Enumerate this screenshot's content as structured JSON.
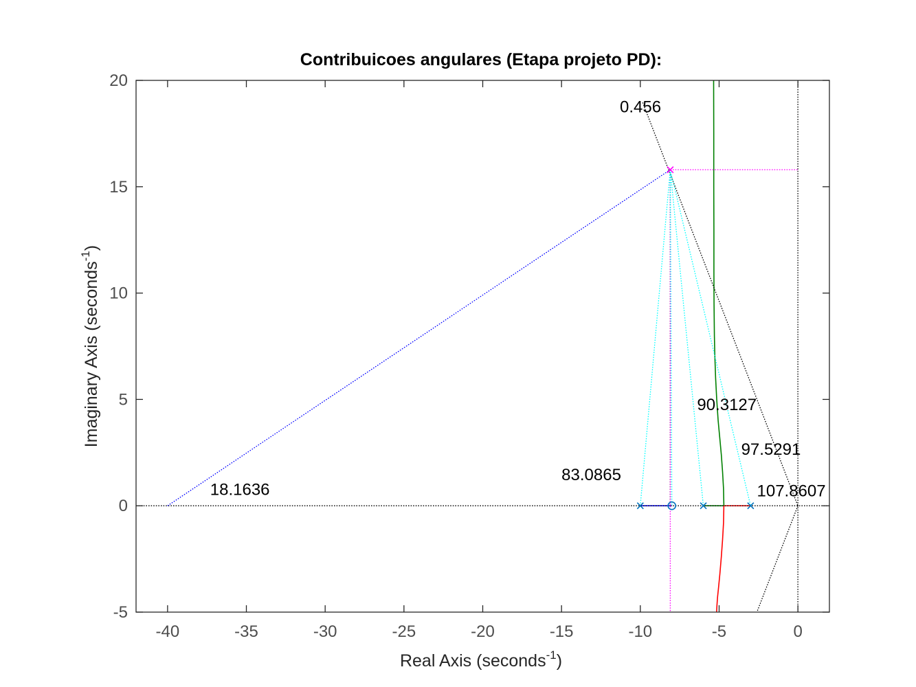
{
  "chart_data": {
    "type": "line",
    "title": "Contribuicoes angulares (Etapa projeto PD):",
    "xlabel": {
      "main": "Real Axis (seconds",
      "sup": "-1",
      "end": ")"
    },
    "ylabel": {
      "main": "Imaginary Axis (seconds",
      "sup": "-1",
      "end": ")"
    },
    "xlim": [
      -42,
      2
    ],
    "ylim": [
      -5,
      20
    ],
    "xticks": [
      -40,
      -35,
      -30,
      -25,
      -20,
      -15,
      -10,
      -5,
      0
    ],
    "yticks": [
      -5,
      0,
      5,
      10,
      15,
      20
    ],
    "xtick_labels": [
      "-40",
      "-35",
      "-30",
      "-25",
      "-20",
      "-15",
      "-10",
      "-5",
      "0"
    ],
    "ytick_labels": [
      "-5",
      "0",
      "5",
      "10",
      "15",
      "20"
    ],
    "grid": false,
    "colors": {
      "blue": "#0000ff",
      "cyan": "#00ffff",
      "magenta": "#ff00ff",
      "green": "#008000",
      "red": "#ff0000",
      "black": "#000000",
      "marker": "#0072bd"
    },
    "poles": [
      [
        -10,
        0
      ],
      [
        -6,
        0
      ],
      [
        -3,
        0
      ]
    ],
    "zeros": [
      [
        -8,
        0
      ]
    ],
    "desired_pole": [
      -8.1,
      15.8
    ],
    "series": [
      {
        "kind": "rlocus",
        "color": "blue",
        "x": [
          -10,
          -8
        ],
        "y": [
          0,
          0
        ]
      },
      {
        "kind": "rlocus",
        "color": "red",
        "x": [
          -3,
          -4.7
        ],
        "y": [
          0,
          0
        ]
      },
      {
        "kind": "rlocus",
        "color": "green",
        "x": [
          -6,
          -4.7
        ],
        "y": [
          0,
          0
        ]
      },
      {
        "kind": "rlocus",
        "color": "green",
        "x": [
          -4.7,
          -4.72,
          -4.78,
          -4.86,
          -4.96,
          -5.06,
          -5.15,
          -5.22,
          -5.27,
          -5.3,
          -5.32,
          -5.33,
          -5.33,
          -5.34,
          -5.34,
          -5.35
        ],
        "y": [
          0,
          0.8,
          1.6,
          2.4,
          3.2,
          4.0,
          5.0,
          6.0,
          7.0,
          8.0,
          9.5,
          11,
          13,
          15,
          17.5,
          20
        ]
      },
      {
        "kind": "rlocus",
        "color": "red",
        "x": [
          -4.7,
          -4.72,
          -4.78,
          -4.86,
          -4.95,
          -5.03,
          -5.1,
          -5.14,
          -5.16
        ],
        "y": [
          0,
          -0.8,
          -1.6,
          -2.4,
          -3.2,
          -3.8,
          -4.3,
          -4.7,
          -5
        ]
      },
      {
        "kind": "dotted",
        "color": "black",
        "x": [
          -42,
          2
        ],
        "y": [
          0,
          0
        ]
      },
      {
        "kind": "dotted",
        "color": "black",
        "x": [
          0,
          0
        ],
        "y": [
          -5,
          20
        ]
      },
      {
        "kind": "dotted",
        "color": "black",
        "x": [
          -9.85,
          0
        ],
        "y": [
          18.96,
          0
        ]
      },
      {
        "kind": "dotted",
        "color": "black",
        "x": [
          0,
          -2.6
        ],
        "y": [
          0,
          -5
        ]
      },
      {
        "kind": "dotted",
        "color": "black",
        "x": [
          -8.1,
          -8.1
        ],
        "y": [
          15.8,
          0
        ]
      },
      {
        "kind": "dotted",
        "color": "magenta",
        "x": [
          -8.1,
          -8.1
        ],
        "y": [
          15.8,
          -5
        ]
      },
      {
        "kind": "dotted",
        "color": "magenta",
        "x": [
          -8.1,
          0
        ],
        "y": [
          15.8,
          15.8
        ]
      },
      {
        "kind": "dotted",
        "color": "blue",
        "x": [
          -8.1,
          -40
        ],
        "y": [
          15.8,
          0
        ]
      },
      {
        "kind": "dotted",
        "color": "cyan",
        "x": [
          -8.1,
          -10
        ],
        "y": [
          15.8,
          0
        ]
      },
      {
        "kind": "dotted",
        "color": "cyan",
        "x": [
          -8.1,
          -8
        ],
        "y": [
          15.8,
          0
        ]
      },
      {
        "kind": "dotted",
        "color": "cyan",
        "x": [
          -8.1,
          -6
        ],
        "y": [
          15.8,
          0
        ]
      },
      {
        "kind": "dotted",
        "color": "cyan",
        "x": [
          -8.1,
          -3
        ],
        "y": [
          15.8,
          0
        ]
      }
    ],
    "annotations": [
      {
        "text": "0.456",
        "x": -11.3,
        "y": 18.5
      },
      {
        "text": "90.3127",
        "x": -6.4,
        "y": 4.5
      },
      {
        "text": "97.5291",
        "x": -3.6,
        "y": 2.4
      },
      {
        "text": "83.0865",
        "x": -15.0,
        "y": 1.2
      },
      {
        "text": "18.1636",
        "x": -37.3,
        "y": 0.5
      },
      {
        "text": "107.8607",
        "x": -2.6,
        "y": 0.45
      }
    ]
  }
}
